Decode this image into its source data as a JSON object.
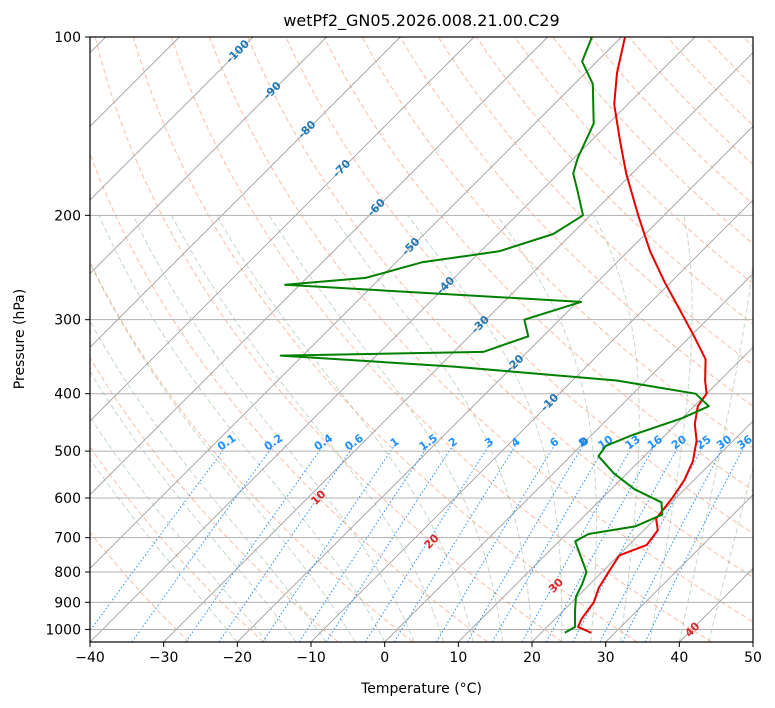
{
  "chart_data": {
    "type": "line",
    "subtype": "skew-t log-p diagram",
    "title": "wetPf2_GN05.2026.008.21.00.C29",
    "xlabel": "Temperature (°C)",
    "ylabel": "Pressure (hPa)",
    "xlim": [
      -40,
      50
    ],
    "ylim": [
      1050,
      100
    ],
    "y_scale": "log",
    "grid": true,
    "x_ticks": [
      "−40",
      "−30",
      "−20",
      "−10",
      "0",
      "10",
      "20",
      "30",
      "40",
      "50"
    ],
    "y_ticks": [
      "100",
      "200",
      "300",
      "400",
      "500",
      "600",
      "700",
      "800",
      "900",
      "1000"
    ],
    "temperature": {
      "name": "Temperature",
      "color": "#e60000",
      "points": [
        {
          "p": 1013,
          "t": 26.8
        },
        {
          "p": 990,
          "t": 24.2
        },
        {
          "p": 960,
          "t": 23.6
        },
        {
          "p": 900,
          "t": 23.0
        },
        {
          "p": 850,
          "t": 21.7
        },
        {
          "p": 800,
          "t": 20.9
        },
        {
          "p": 750,
          "t": 20.1
        },
        {
          "p": 720,
          "t": 22.4
        },
        {
          "p": 680,
          "t": 21.9
        },
        {
          "p": 650,
          "t": 20.1
        },
        {
          "p": 600,
          "t": 19.5
        },
        {
          "p": 560,
          "t": 18.7
        },
        {
          "p": 520,
          "t": 17.3
        },
        {
          "p": 480,
          "t": 15.0
        },
        {
          "p": 450,
          "t": 12.5
        },
        {
          "p": 420,
          "t": 10.5
        },
        {
          "p": 400,
          "t": 10.0
        },
        {
          "p": 380,
          "t": 8.0
        },
        {
          "p": 350,
          "t": 5.2
        },
        {
          "p": 320,
          "t": 0.5
        },
        {
          "p": 290,
          "t": -4.8
        },
        {
          "p": 260,
          "t": -10.7
        },
        {
          "p": 230,
          "t": -17.0
        },
        {
          "p": 200,
          "t": -23.5
        },
        {
          "p": 170,
          "t": -30.8
        },
        {
          "p": 150,
          "t": -36.0
        },
        {
          "p": 130,
          "t": -41.8
        },
        {
          "p": 115,
          "t": -45.7
        },
        {
          "p": 100,
          "t": -49.5
        }
      ]
    },
    "dewpoint": {
      "name": "Dewpoint",
      "color": "#008000",
      "points": [
        {
          "p": 1013,
          "t": 23.2
        },
        {
          "p": 990,
          "t": 23.8
        },
        {
          "p": 930,
          "t": 21.6
        },
        {
          "p": 880,
          "t": 19.8
        },
        {
          "p": 840,
          "t": 19.0
        },
        {
          "p": 800,
          "t": 17.9
        },
        {
          "p": 750,
          "t": 14.8
        },
        {
          "p": 710,
          "t": 12.2
        },
        {
          "p": 690,
          "t": 13.0
        },
        {
          "p": 670,
          "t": 18.3
        },
        {
          "p": 640,
          "t": 20.4
        },
        {
          "p": 610,
          "t": 18.6
        },
        {
          "p": 580,
          "t": 13.2
        },
        {
          "p": 545,
          "t": 8.2
        },
        {
          "p": 510,
          "t": 3.8
        },
        {
          "p": 490,
          "t": 3.4
        },
        {
          "p": 470,
          "t": 5.5
        },
        {
          "p": 440,
          "t": 10.0
        },
        {
          "p": 420,
          "t": 12.0
        },
        {
          "p": 400,
          "t": 8.5
        },
        {
          "p": 380,
          "t": -4.0
        },
        {
          "p": 360,
          "t": -28.0
        },
        {
          "p": 345,
          "t": -53.0
        },
        {
          "p": 340,
          "t": -26.0
        },
        {
          "p": 320,
          "t": -22.0
        },
        {
          "p": 300,
          "t": -24.8
        },
        {
          "p": 280,
          "t": -19.5
        },
        {
          "p": 262,
          "t": -62.0
        },
        {
          "p": 255,
          "t": -52.0
        },
        {
          "p": 240,
          "t": -46.5
        },
        {
          "p": 230,
          "t": -37.5
        },
        {
          "p": 215,
          "t": -32.5
        },
        {
          "p": 200,
          "t": -31.0
        },
        {
          "p": 180,
          "t": -35.5
        },
        {
          "p": 170,
          "t": -38.0
        },
        {
          "p": 160,
          "t": -39.5
        },
        {
          "p": 140,
          "t": -42.0
        },
        {
          "p": 120,
          "t": -47.5
        },
        {
          "p": 110,
          "t": -52.0
        },
        {
          "p": 100,
          "t": -54.0
        }
      ]
    },
    "isotherm_labels": {
      "color": "#1f77b4",
      "labels": [
        "-100",
        "-90",
        "-80",
        "-70",
        "-60",
        "-50",
        "-40",
        "-30",
        "-20",
        "-10",
        "0"
      ],
      "values": [
        -100,
        -90,
        -80,
        -70,
        -60,
        -50,
        -40,
        -30,
        -20,
        -10,
        0
      ]
    },
    "dry_adiabat_labels": {
      "color": "#d62728",
      "labels": [
        "10",
        "20",
        "30",
        "40"
      ],
      "values": [
        10,
        20,
        30,
        40
      ]
    },
    "mixing_ratio_labels": {
      "color": "#1e90ff",
      "labels": [
        "0.1",
        "0.2",
        "0.4",
        "0.6",
        "1",
        "1.5",
        "2",
        "3",
        "4",
        "6",
        "8",
        "10",
        "13",
        "16",
        "20",
        "25",
        "30",
        "36"
      ],
      "values": [
        0.1,
        0.2,
        0.4,
        0.6,
        1,
        1.5,
        2,
        3,
        4,
        6,
        8,
        10,
        13,
        16,
        20,
        25,
        30,
        36
      ]
    },
    "colors": {
      "isotherm_lines": "#9e9e9e",
      "dry_adiabats": "#ffa07a",
      "moist_adiabats": "#8fbc8f",
      "mixing_ratio_lines": "#1e90ff",
      "reference_curve": "#d2b48c",
      "gridlines": "#b0b0b0"
    }
  }
}
